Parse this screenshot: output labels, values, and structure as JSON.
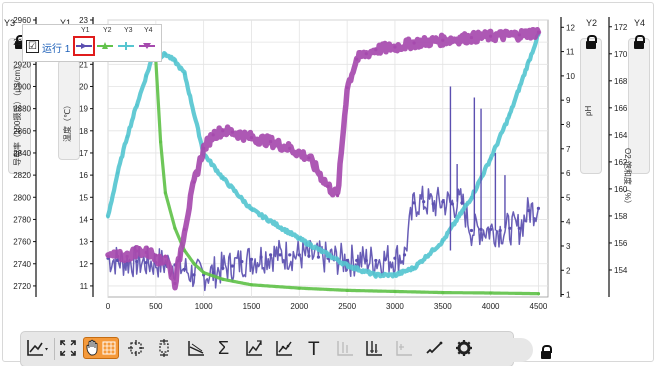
{
  "legend": {
    "run_label": "运行",
    "run_number": "1",
    "columns": [
      "Y1",
      "Y2",
      "Y3",
      "Y4"
    ]
  },
  "axes": {
    "y1_tab_label": "导电率（100摄氏）（μS/cm）",
    "y2_tab_label": "温度（℃）",
    "y3_tab_label": "pH",
    "y4_tab_label": "O2 饱和度（%）",
    "y3_axis_name": "Y3",
    "y1_axis_name": "Y1",
    "y2_axis_name": "Y2",
    "y4_axis_name": "Y4"
  },
  "colors": {
    "conductivity": "#5b4fb0",
    "temperature": "#62c24b",
    "ph": "#56c5d0",
    "o2": "#a64aae",
    "selected_outline": "#e01c1c",
    "active_tool": "#f59a3b"
  },
  "toolbar": {
    "tools": [
      "graph-options",
      "autoscale",
      "pan",
      "select-region",
      "examine",
      "statistics",
      "integral",
      "curve-fit",
      "tangent",
      "annotation",
      "interpolate",
      "mark-data",
      "add-calibration",
      "draw-prediction",
      "settings"
    ],
    "active_tool": "pan",
    "text_tool_glyph": "T",
    "sum_glyph": "Σ"
  },
  "chart_data": {
    "type": "line",
    "x": [
      0,
      500,
      1000,
      1500,
      2000,
      2500,
      3000,
      3500,
      4000,
      4500
    ],
    "xlim": [
      0,
      4600
    ],
    "x_ticks": [
      "0",
      "500",
      "1000",
      "1500",
      "2000",
      "2500",
      "3000",
      "3500",
      "4000",
      "4500"
    ],
    "axes": [
      {
        "id": "Y3",
        "label": "导电率（100摄氏）（μS/cm）",
        "side": "left",
        "ylim": [
          2710,
          2960
        ],
        "ticks": [
          "2720",
          "2740",
          "2760",
          "2780",
          "2800",
          "2820",
          "2840",
          "2860",
          "2880",
          "2900",
          "2920",
          "2940",
          "2960"
        ]
      },
      {
        "id": "Y1",
        "label": "温度（℃）",
        "side": "left",
        "ylim": [
          10.5,
          23
        ],
        "ticks": [
          "11",
          "12",
          "13",
          "14",
          "15",
          "16",
          "17",
          "18",
          "19",
          "20",
          "21",
          "22",
          "23"
        ]
      },
      {
        "id": "Y2",
        "label": "pH",
        "side": "right",
        "ylim": [
          0.9,
          12.3
        ],
        "ticks": [
          "1",
          "2",
          "3",
          "4",
          "5",
          "6",
          "7",
          "8",
          "9",
          "10",
          "11",
          "12"
        ]
      },
      {
        "id": "Y4",
        "label": "O2 饱和度（%）",
        "side": "right",
        "ylim": [
          152,
          172.5
        ],
        "ticks": [
          "154",
          "156",
          "158",
          "160",
          "162",
          "164",
          "166",
          "168",
          "170",
          "172"
        ]
      }
    ],
    "series": [
      {
        "id": "conductivity",
        "axis": "Y3",
        "color": "#5b4fb0",
        "x": [
          0,
          100,
          200,
          300,
          400,
          500,
          600,
          700,
          800,
          900,
          1000,
          1100,
          1200,
          1300,
          1400,
          1500,
          1600,
          1700,
          1800,
          1900,
          2000,
          2100,
          2200,
          2300,
          2400,
          2500,
          2600,
          2700,
          2800,
          2900,
          3000,
          3100,
          3200,
          3300,
          3400,
          3500,
          3600,
          3700,
          3800,
          3900,
          4000,
          4100,
          4200,
          4300,
          4400,
          4500
        ],
        "y": [
          2745,
          2743,
          2742,
          2742,
          2741,
          2741,
          2740,
          2739,
          2735,
          2730,
          2730,
          2732,
          2736,
          2738,
          2742,
          2744,
          2746,
          2748,
          2748,
          2748,
          2748,
          2747,
          2746,
          2745,
          2744,
          2743,
          2743,
          2743,
          2743,
          2744,
          2745,
          2748,
          2795,
          2796,
          2794,
          2796,
          2794,
          2795,
          2770,
          2771,
          2771,
          2770,
          2772,
          2772,
          2788,
          2790
        ]
      },
      {
        "id": "temperature",
        "axis": "Y1",
        "color": "#62c24b",
        "x": [
          0,
          500,
          550,
          600,
          700,
          800,
          900,
          1000,
          1200,
          1500,
          2000,
          2500,
          3000,
          3500,
          4000,
          4500
        ],
        "y": [
          null,
          21.2,
          17.5,
          15.2,
          13.6,
          12.6,
          12.0,
          11.6,
          11.3,
          11.05,
          10.9,
          10.8,
          10.75,
          10.7,
          10.68,
          10.65
        ]
      },
      {
        "id": "ph",
        "axis": "Y2",
        "color": "#56c5d0",
        "x": [
          0,
          100,
          200,
          300,
          400,
          500,
          550,
          600,
          700,
          800,
          1000,
          1200,
          1500,
          2000,
          2500,
          2800,
          3000,
          3200,
          3500,
          3800,
          4000,
          4200,
          4400,
          4500
        ],
        "y": [
          4.2,
          6.0,
          7.5,
          8.8,
          10.0,
          11.2,
          10.8,
          10.9,
          10.6,
          10.1,
          6.8,
          5.8,
          4.5,
          3.3,
          2.2,
          1.8,
          1.8,
          2.1,
          3.2,
          5.0,
          6.6,
          8.4,
          10.6,
          11.7
        ]
      },
      {
        "id": "o2",
        "axis": "Y4",
        "color": "#a64aae",
        "x": [
          0,
          100,
          200,
          300,
          400,
          500,
          550,
          600,
          700,
          800,
          900,
          1000,
          1100,
          1200,
          1300,
          1500,
          1700,
          1900,
          2100,
          2300,
          2400,
          2500,
          2600,
          2700,
          2800,
          3000,
          3200,
          3500,
          3800,
          4000,
          4300,
          4500
        ],
        "y": [
          155.0,
          155.0,
          155.0,
          155.4,
          155.3,
          155.1,
          154.5,
          155.0,
          153.0,
          157.0,
          160.5,
          163.0,
          164.0,
          164.3,
          164.2,
          163.8,
          163.5,
          163.0,
          162.3,
          160.2,
          159.5,
          167.5,
          169.6,
          170.0,
          170.3,
          170.5,
          170.8,
          171.0,
          171.2,
          171.3,
          171.4,
          171.6
        ]
      }
    ]
  }
}
